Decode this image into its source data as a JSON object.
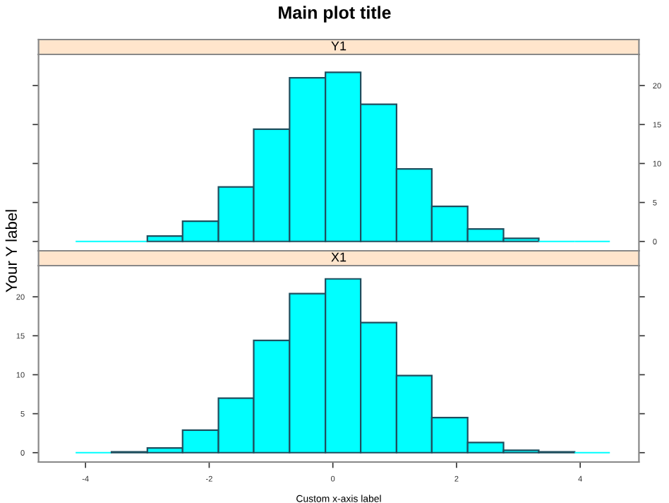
{
  "chart_data": [
    {
      "type": "histogram",
      "title": "Main plot title",
      "subtitle": "Y1",
      "color": "#00ffff",
      "bins": [
        -4.16,
        -3.58,
        -3.0,
        -2.43,
        -1.85,
        -1.28,
        -0.7,
        -0.12,
        0.45,
        1.03,
        1.6,
        2.18,
        2.76,
        3.33,
        3.91,
        4.48
      ],
      "values": [
        0,
        0,
        0.7,
        2.6,
        7.0,
        14.4,
        21.0,
        21.7,
        17.6,
        9.3,
        4.5,
        1.6,
        0.4,
        0,
        0
      ],
      "xlim": [
        -4.76,
        4.95
      ],
      "xticks": [
        -4,
        -2,
        0,
        2,
        4
      ],
      "ylim": [
        -1.2,
        24
      ],
      "yticks": [
        0,
        5,
        10,
        15,
        20
      ],
      "tick_labels": "y",
      "grid": false,
      "legend": false
    },
    {
      "type": "histogram",
      "subtitle": "X1",
      "xlabel": "Custom x-axis label",
      "ylabel": "Your Y label",
      "color": "#00ffff",
      "bins": [
        -4.16,
        -3.58,
        -3.0,
        -2.43,
        -1.85,
        -1.28,
        -0.7,
        -0.12,
        0.45,
        1.03,
        1.6,
        2.18,
        2.76,
        3.33,
        3.91,
        4.48
      ],
      "values": [
        0,
        0.1,
        0.6,
        2.9,
        7.0,
        14.4,
        20.4,
        22.3,
        16.7,
        9.9,
        4.5,
        1.3,
        0.3,
        0.1,
        0
      ],
      "xlim": [
        -4.76,
        4.95
      ],
      "xticks": [
        -4,
        -2,
        0,
        2,
        4
      ],
      "ylim": [
        -1.2,
        24
      ],
      "yticks": [
        0,
        5,
        10,
        15,
        20
      ],
      "grid": false,
      "legend": false
    }
  ]
}
